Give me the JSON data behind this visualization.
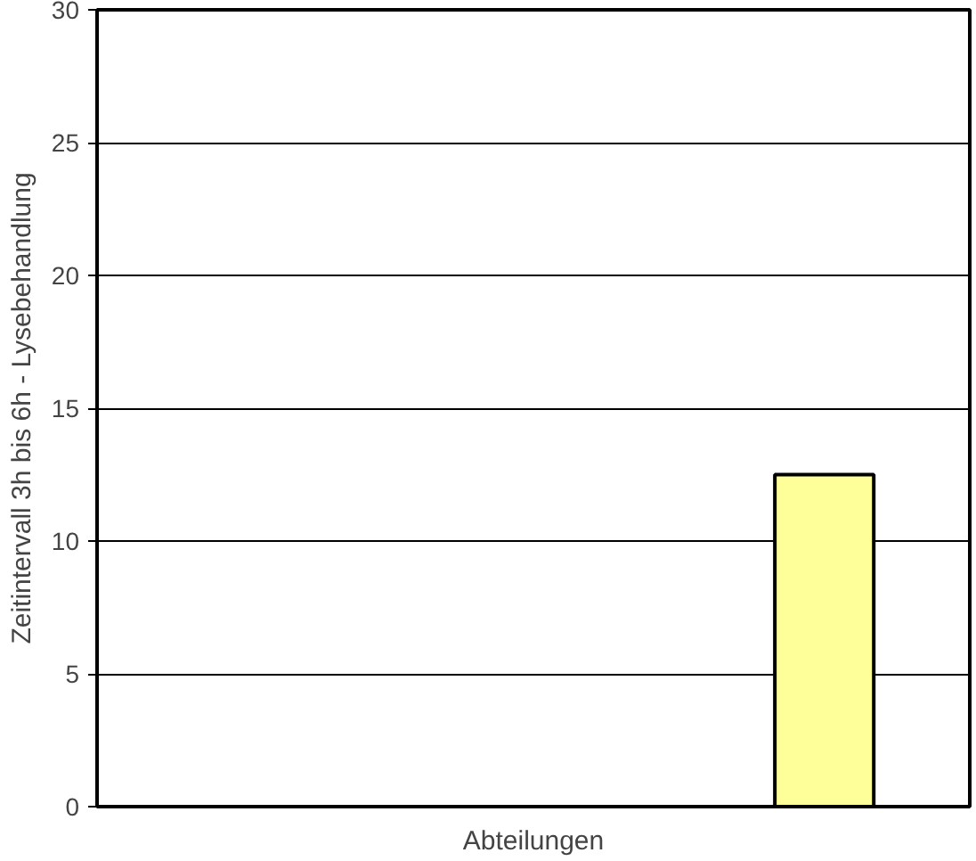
{
  "chart_data": {
    "type": "bar",
    "ylabel": "Zeitintervall 3h bis 6h - Lysebehandlung",
    "xlabel": "Abteilungen",
    "categories": [
      null,
      null,
      null
    ],
    "values": [
      null,
      null,
      12.5
    ],
    "color": "#ffff99",
    "ylim": [
      0,
      30
    ],
    "yticks": [
      0,
      5,
      10,
      15,
      20,
      25,
      30
    ],
    "grid": "y",
    "tick_labels": "y"
  }
}
